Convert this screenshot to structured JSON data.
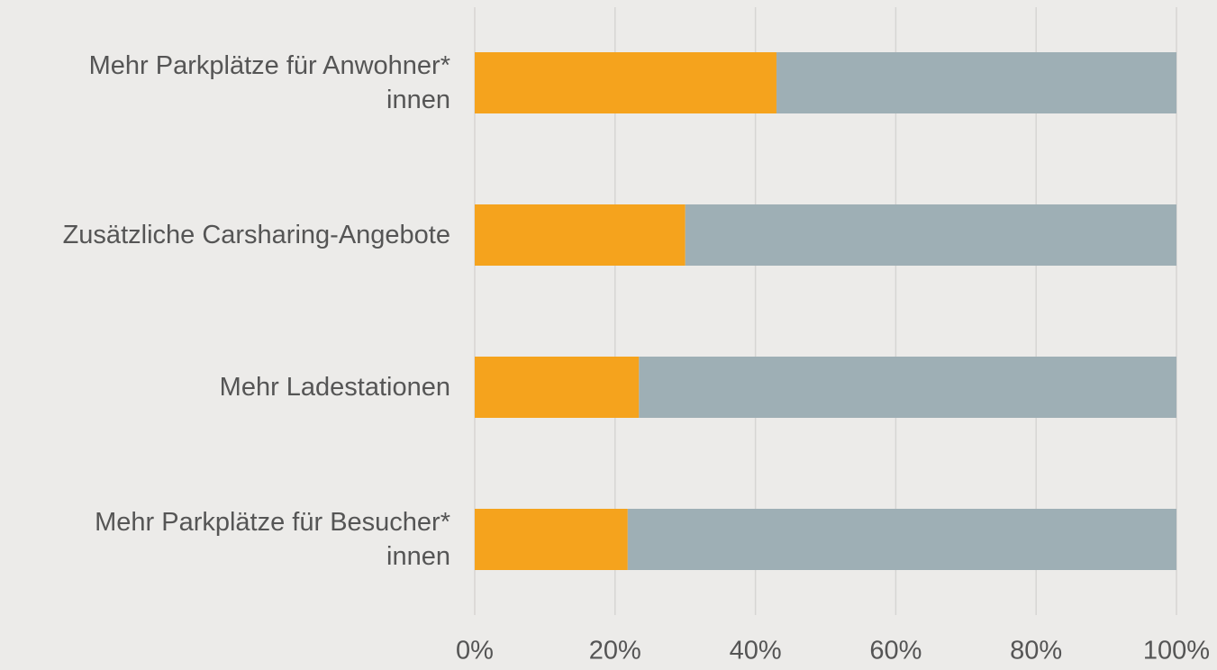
{
  "chart_data": {
    "type": "stacked-bar-horizontal",
    "categories": [
      "Mehr Parkplätze für Anwohner*\ninnen",
      "Zusätzliche Carsharing-Angebote",
      "Mehr Ladestationen",
      "Mehr Parkplätze für Besucher*\ninnen"
    ],
    "series": [
      {
        "color": "#f5a31d",
        "values": [
          43,
          30,
          23.4,
          21.8
        ]
      },
      {
        "color": "#9eafb5",
        "values": [
          57,
          70,
          76.6,
          78.2
        ]
      }
    ],
    "xlim": [
      0,
      100
    ],
    "xticks": [
      {
        "value": 0,
        "label": "0%"
      },
      {
        "value": 20,
        "label": "20%"
      },
      {
        "value": 40,
        "label": "40%"
      },
      {
        "value": 60,
        "label": "60%"
      },
      {
        "value": 80,
        "label": "80%"
      },
      {
        "value": 100,
        "label": "100%"
      }
    ],
    "grid": true
  }
}
